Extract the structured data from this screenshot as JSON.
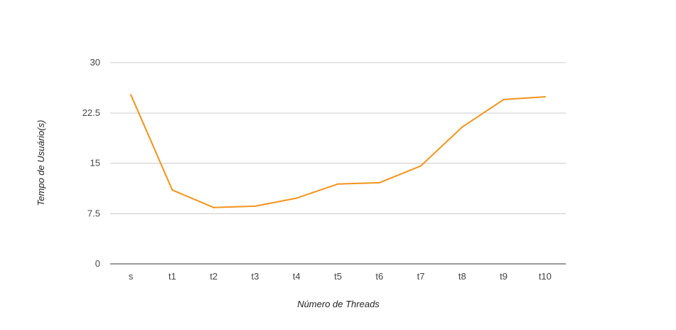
{
  "chart_data": {
    "type": "line",
    "title": "",
    "xlabel": "Número de Threads",
    "ylabel": "Tempo de Usuário(s)",
    "categories": [
      "s",
      "t1",
      "t2",
      "t3",
      "t4",
      "t5",
      "t6",
      "t7",
      "t8",
      "t9",
      "t10"
    ],
    "series": [
      {
        "values": [
          25.2,
          11.0,
          8.4,
          8.6,
          9.8,
          11.9,
          12.1,
          14.6,
          20.4,
          24.5,
          24.9
        ],
        "color": "#f2931b"
      }
    ],
    "ylim": [
      0,
      30
    ],
    "yticks": [
      0,
      7.5,
      15,
      22.5,
      30
    ],
    "ytick_labels": [
      "0",
      "7.5",
      "15",
      "22.5",
      "30"
    ],
    "grid": true,
    "legend": "none",
    "colors": {
      "grid": "#cccccc",
      "baseline": "#333333",
      "line": "#f2931b"
    }
  }
}
